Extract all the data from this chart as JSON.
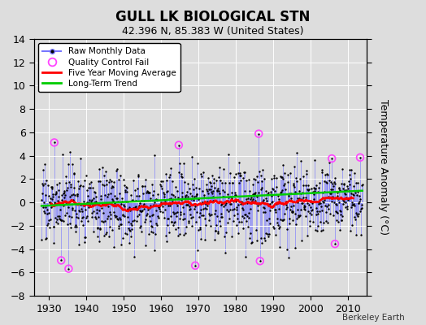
{
  "title": "GULL LK BIOLOGICAL STN",
  "subtitle": "42.396 N, 85.383 W (United States)",
  "ylabel": "Temperature Anomaly (°C)",
  "credit": "Berkeley Earth",
  "xlim": [
    1926,
    2015
  ],
  "ylim": [
    -8,
    14
  ],
  "yticks": [
    -8,
    -6,
    -4,
    -2,
    0,
    2,
    4,
    6,
    8,
    10,
    12,
    14
  ],
  "xticks": [
    1930,
    1940,
    1950,
    1960,
    1970,
    1980,
    1990,
    2000,
    2010
  ],
  "start_year": 1928,
  "end_year": 2013,
  "seed": 17,
  "line_color": "#7777ff",
  "dot_color": "#000000",
  "moving_avg_color": "#ff0000",
  "trend_color": "#00cc00",
  "qc_fail_color": "#ff44ff",
  "bg_color": "#dddddd",
  "title_fontsize": 12,
  "subtitle_fontsize": 9,
  "tick_fontsize": 9
}
